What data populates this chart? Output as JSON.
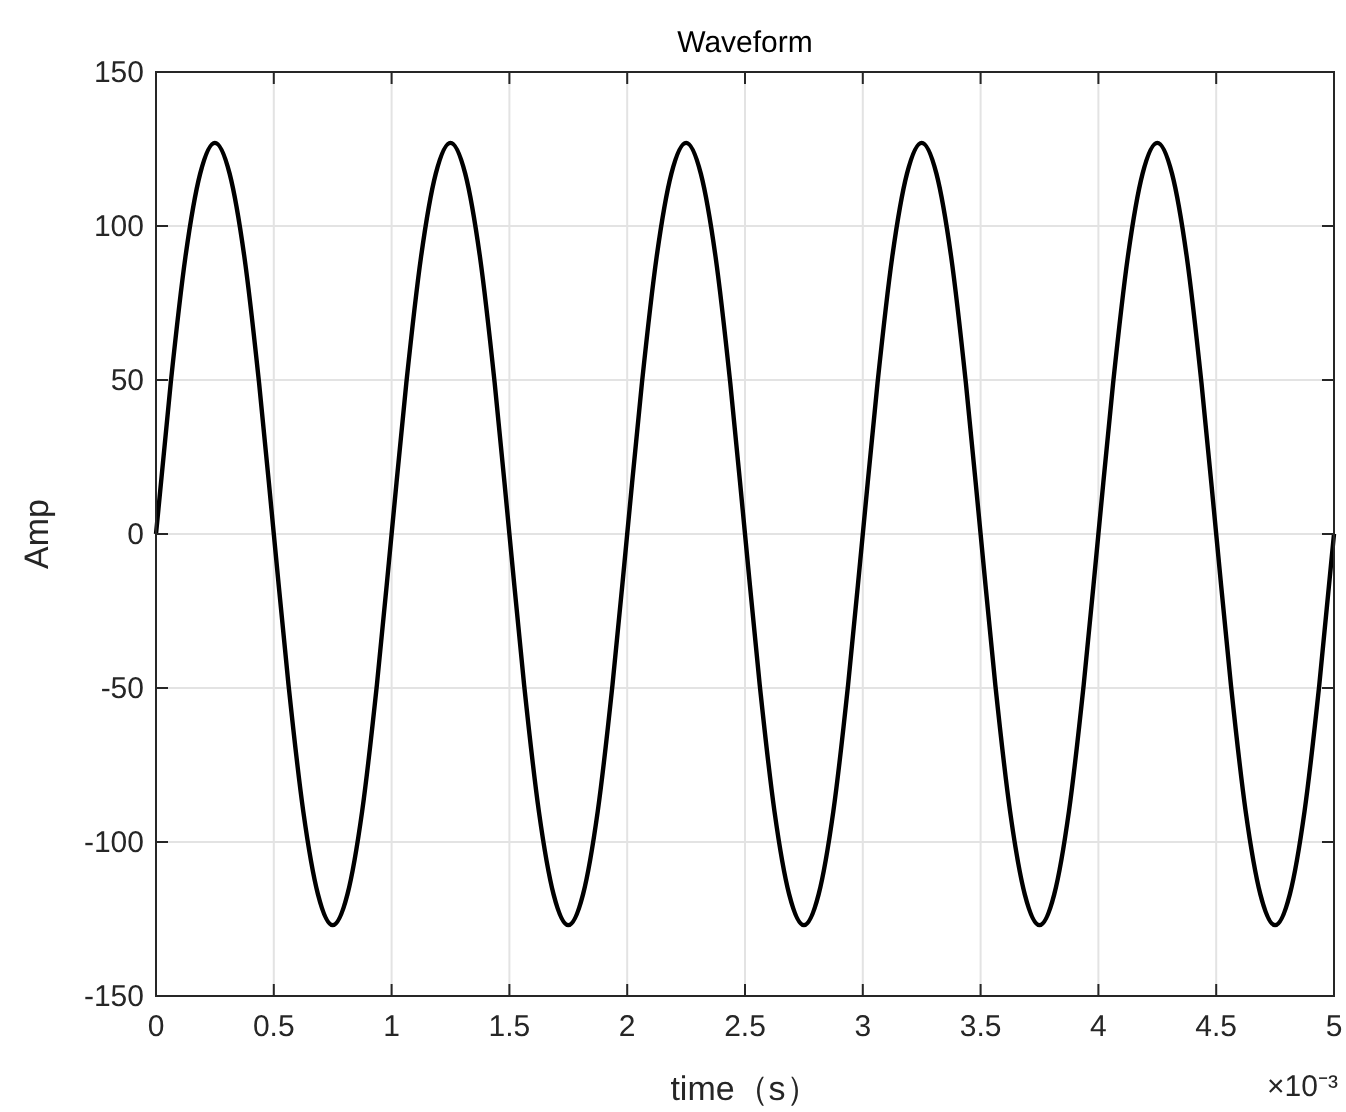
{
  "chart_data": {
    "type": "line",
    "title": "Waveform",
    "xlabel": "time（s）",
    "ylabel": "Amp",
    "x": [
      0,
      0.0625,
      0.125,
      0.1875,
      0.25,
      0.3125,
      0.375,
      0.4375,
      0.5,
      0.5625,
      0.625,
      0.6875,
      0.75,
      0.8125,
      0.875,
      0.9375,
      1,
      1.0625,
      1.125,
      1.1875,
      1.25,
      1.3125,
      1.375,
      1.4375,
      1.5,
      1.5625,
      1.625,
      1.6875,
      1.75,
      1.8125,
      1.875,
      1.9375,
      2,
      2.0625,
      2.125,
      2.1875,
      2.25,
      2.3125,
      2.375,
      2.4375,
      2.5,
      2.5625,
      2.625,
      2.6875,
      2.75,
      2.8125,
      2.875,
      2.9375,
      3,
      3.0625,
      3.125,
      3.1875,
      3.25,
      3.3125,
      3.375,
      3.4375,
      3.5,
      3.5625,
      3.625,
      3.6875,
      3.75,
      3.8125,
      3.875,
      3.9375,
      4,
      4.0625,
      4.125,
      4.1875,
      4.25,
      4.3125,
      4.375,
      4.4375,
      4.5,
      4.5625,
      4.625,
      4.6875,
      4.75,
      4.8125,
      4.875,
      4.9375,
      5
    ],
    "series": [
      {
        "color": "#000000",
        "values": [
          0,
          49,
          90,
          117,
          127,
          117,
          90,
          49,
          0,
          -49,
          -90,
          -117,
          -127,
          -117,
          -90,
          -49,
          0,
          49,
          90,
          117,
          127,
          117,
          90,
          49,
          0,
          -49,
          -90,
          -117,
          -127,
          -117,
          -90,
          -49,
          0,
          49,
          90,
          117,
          127,
          117,
          90,
          49,
          0,
          -49,
          -90,
          -117,
          -127,
          -117,
          -90,
          -49,
          0,
          49,
          90,
          117,
          127,
          117,
          90,
          49,
          0,
          -49,
          -90,
          -117,
          -127,
          -117,
          -90,
          -49,
          0,
          49,
          90,
          117,
          127,
          117,
          90,
          49,
          0,
          -49,
          -90,
          -117,
          -127,
          -117,
          -90,
          -49,
          0
        ]
      }
    ],
    "xlim": [
      0,
      5
    ],
    "xticks": [
      0,
      0.5,
      1,
      1.5,
      2,
      2.5,
      3,
      3.5,
      4,
      4.5,
      5
    ],
    "ylim": [
      -150,
      150
    ],
    "yticks": [
      -150,
      -100,
      -50,
      0,
      50,
      100,
      150
    ],
    "grid": true,
    "line_style": "solid",
    "annotations": [
      "×10⁻³"
    ]
  }
}
